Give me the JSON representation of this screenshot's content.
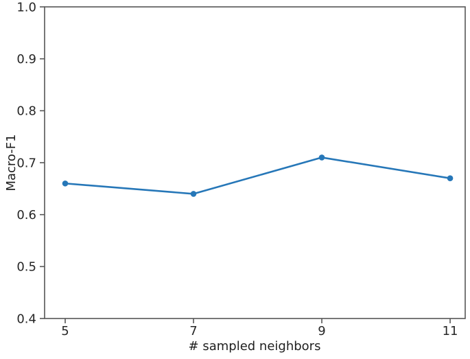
{
  "chart_data": {
    "type": "line",
    "title": "",
    "xlabel": "# sampled neighbors",
    "ylabel": "Macro-F1",
    "x": [
      5,
      7,
      9,
      11
    ],
    "values": [
      0.66,
      0.64,
      0.71,
      0.67
    ],
    "xticks": [
      5,
      7,
      9,
      11
    ],
    "xtick_labels": [
      "5",
      "7",
      "9",
      "11"
    ],
    "yticks": [
      0.4,
      0.5,
      0.6,
      0.7,
      0.8,
      0.9,
      1.0
    ],
    "ytick_labels": [
      "0.4",
      "0.5",
      "0.6",
      "0.7",
      "0.8",
      "0.9",
      "1.0"
    ],
    "xlim": [
      4.679,
      11.235
    ],
    "ylim": [
      0.4,
      1.0
    ],
    "grid": false,
    "legend": "none",
    "line_color": "#2677b8",
    "marker": "circle",
    "spine_color": "#555555",
    "tick_label_color": "#262626"
  }
}
